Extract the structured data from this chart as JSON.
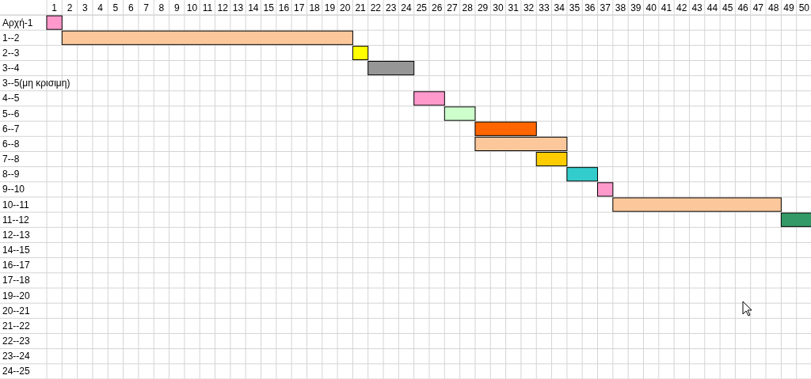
{
  "chart_data": {
    "type": "bar",
    "orientation": "horizontal",
    "grid": true,
    "categories": [
      "Αρχή-1",
      "1--2",
      "2--3",
      "3--4",
      "3--5(μη κρισιμη)",
      "4--5",
      "5--6",
      "6--7",
      "6--8",
      "7--8",
      "8--9",
      "9--10",
      "10--11",
      "11--12",
      "12--13",
      "14--15",
      "16--17",
      "17--18",
      "19--20",
      "20--21",
      "21--22",
      "22--23",
      "23--24",
      "24--25"
    ],
    "values": [
      1,
      19,
      1,
      3,
      null,
      2,
      2,
      4,
      6,
      2,
      2,
      1,
      11,
      2,
      null,
      null,
      null,
      null,
      null,
      null,
      null,
      null,
      null,
      null
    ],
    "base": [
      0,
      1,
      20,
      21,
      null,
      24,
      26,
      28,
      28,
      32,
      34,
      36,
      37,
      48,
      null,
      null,
      null,
      null,
      null,
      null,
      null,
      null,
      null,
      null
    ],
    "colors": [
      "#ff99cc",
      "#fcc89b",
      "#ffff00",
      "#969696",
      null,
      "#ff99cc",
      "#ccffcc",
      "#ff6600",
      "#fcc89b",
      "#ffcc00",
      "#33cccc",
      "#ff99cc",
      "#fcc89b",
      "#339966",
      null,
      null,
      null,
      null,
      null,
      null,
      null,
      null,
      null,
      null
    ],
    "xlim": [
      0,
      50
    ],
    "xticks": [
      {
        "value": 0.5,
        "label": "1"
      },
      {
        "value": 1.5,
        "label": "2"
      },
      {
        "value": 2.5,
        "label": "3"
      },
      {
        "value": 3.5,
        "label": "4"
      },
      {
        "value": 4.5,
        "label": "5"
      },
      {
        "value": 5.5,
        "label": "6"
      },
      {
        "value": 6.5,
        "label": "7"
      },
      {
        "value": 7.5,
        "label": "8"
      },
      {
        "value": 8.5,
        "label": "9"
      },
      {
        "value": 9.5,
        "label": "10"
      },
      {
        "value": 10.5,
        "label": "11"
      },
      {
        "value": 11.5,
        "label": "12"
      },
      {
        "value": 12.5,
        "label": "13"
      },
      {
        "value": 13.5,
        "label": "14"
      },
      {
        "value": 14.5,
        "label": "15"
      },
      {
        "value": 15.5,
        "label": "16"
      },
      {
        "value": 16.5,
        "label": "17"
      },
      {
        "value": 17.5,
        "label": "18"
      },
      {
        "value": 18.5,
        "label": "19"
      },
      {
        "value": 19.5,
        "label": "20"
      },
      {
        "value": 20.5,
        "label": "21"
      },
      {
        "value": 21.5,
        "label": "22"
      },
      {
        "value": 22.5,
        "label": "23"
      },
      {
        "value": 23.5,
        "label": "24"
      },
      {
        "value": 24.5,
        "label": "25"
      },
      {
        "value": 25.5,
        "label": "26"
      },
      {
        "value": 26.5,
        "label": "27"
      },
      {
        "value": 27.5,
        "label": "28"
      },
      {
        "value": 28.5,
        "label": "29"
      },
      {
        "value": 29.5,
        "label": "30"
      },
      {
        "value": 30.5,
        "label": "31"
      },
      {
        "value": 31.5,
        "label": "32"
      },
      {
        "value": 32.5,
        "label": "33"
      },
      {
        "value": 33.5,
        "label": "34"
      },
      {
        "value": 34.5,
        "label": "35"
      },
      {
        "value": 35.5,
        "label": "36"
      },
      {
        "value": 36.5,
        "label": "37"
      },
      {
        "value": 37.5,
        "label": "38"
      },
      {
        "value": 38.5,
        "label": "39"
      },
      {
        "value": 39.5,
        "label": "40"
      },
      {
        "value": 40.5,
        "label": "41"
      },
      {
        "value": 41.5,
        "label": "42"
      },
      {
        "value": 42.5,
        "label": "43"
      },
      {
        "value": 43.5,
        "label": "44"
      },
      {
        "value": 44.5,
        "label": "45"
      },
      {
        "value": 45.5,
        "label": "46"
      },
      {
        "value": 46.5,
        "label": "47"
      },
      {
        "value": 47.5,
        "label": "48"
      },
      {
        "value": 48.5,
        "label": "49"
      },
      {
        "value": 49.5,
        "label": "50"
      }
    ]
  }
}
